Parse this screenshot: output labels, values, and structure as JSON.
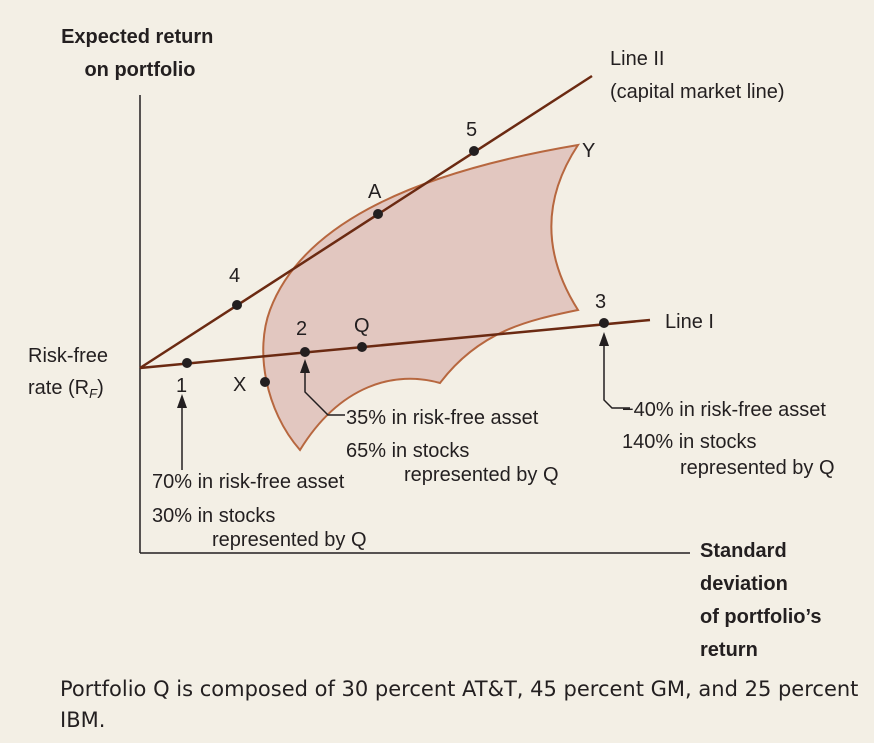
{
  "y_axis_label": [
    "Expected return",
    "on portfolio"
  ],
  "x_axis_label": [
    "Standard",
    "deviation",
    "of portfolio’s",
    "return"
  ],
  "risk_free_label": [
    "Risk-free",
    "rate (R",
    "F",
    ")"
  ],
  "line2_label": [
    "Line II",
    "(capital market line)"
  ],
  "line1_label": "Line I",
  "points": {
    "p1": "1",
    "p2": "2",
    "p3": "3",
    "p4": "4",
    "p5": "5",
    "A": "A",
    "Q": "Q",
    "X": "X",
    "Y": "Y"
  },
  "annotations": {
    "portfolio1": [
      "70% in risk-free asset",
      "30% in stocks",
      "represented by Q"
    ],
    "portfolio2": [
      "35% in risk-free asset",
      "65% in stocks",
      "represented by Q"
    ],
    "portfolio3": [
      "−40% in risk-free asset",
      "140% in stocks",
      "represented by Q"
    ]
  },
  "caption": "Portfolio Q is composed of 30 percent AT&T, 45 percent GM, and 25 percent IBM.",
  "colors": {
    "background": "#f3efe5",
    "line": "#6b2a12",
    "region_fill": "#e2c7c0",
    "region_stroke": "#b7673f",
    "point": "#231f20"
  }
}
